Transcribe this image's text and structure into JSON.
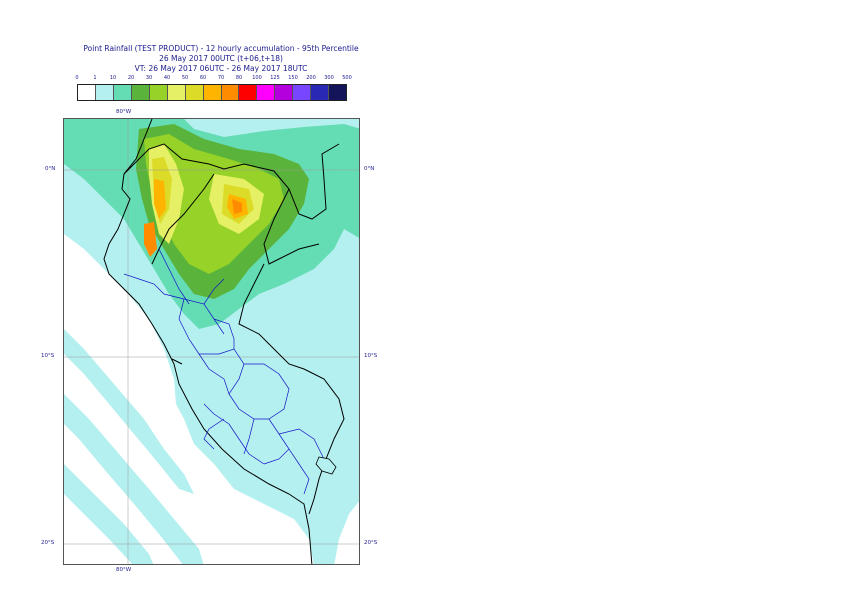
{
  "header": {
    "line1": "Point Rainfall (TEST PRODUCT) - 12 hourly accumulation - 95th Percentile",
    "line2": "26 May 2017 00UTC (t+06,t+18)",
    "line3": "VT: 26 May 2017 06UTC - 26 May 2017 18UTC"
  },
  "legend": {
    "thresholds": [
      "0",
      "1",
      "10",
      "20",
      "30",
      "40",
      "50",
      "60",
      "70",
      "80",
      "100",
      "125",
      "150",
      "200",
      "300",
      "500"
    ],
    "colors": [
      "#ffffff",
      "#b4f0f0",
      "#64dcb4",
      "#5ab43c",
      "#96d228",
      "#e6f064",
      "#dcdc28",
      "#ffb400",
      "#ff8c00",
      "#ff0000",
      "#ff00ff",
      "#b400dc",
      "#7846ff",
      "#2828b4",
      "#14145a"
    ]
  },
  "map": {
    "lon_labels": {
      "top": "80°W",
      "bottom": "80°W"
    },
    "lat_labels": [
      "0°N",
      "10°S",
      "20°S"
    ]
  }
}
